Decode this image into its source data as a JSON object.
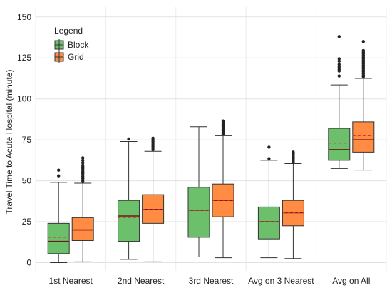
{
  "chart_data": {
    "type": "box",
    "ylabel": "Travel Time to Acute Hospital (minute)",
    "xlabel": "",
    "ylim": [
      -5,
      156
    ],
    "yticks": [
      0,
      25,
      50,
      75,
      100,
      125,
      150
    ],
    "grid": true,
    "legend": {
      "title": "Legend",
      "position": "top-left"
    },
    "categories": [
      "1st Nearest",
      "2nd Nearest",
      "3rd Nearest",
      "Avg on 3 Nearest",
      "Avg on All"
    ],
    "series": [
      {
        "name": "Block",
        "color": "#6cc06c",
        "boxes": [
          {
            "whislo": 0,
            "q1": 5.5,
            "med": 13,
            "q3": 24,
            "whishi": 49,
            "mean": 15.5,
            "fliers": [
              53,
              56.5
            ]
          },
          {
            "whislo": 2,
            "q1": 13,
            "med": 28.5,
            "q3": 38,
            "whishi": 74,
            "mean": 27.5,
            "fliers": [
              75.5
            ]
          },
          {
            "whislo": 3.5,
            "q1": 15.5,
            "med": 32,
            "q3": 46,
            "whishi": 83,
            "mean": 32,
            "fliers": []
          },
          {
            "whislo": 3,
            "q1": 14.5,
            "med": 25,
            "q3": 34,
            "whishi": 62.5,
            "mean": 25,
            "fliers": [
              63.5,
              70.5
            ]
          },
          {
            "whislo": 57.5,
            "q1": 62.5,
            "med": 69,
            "q3": 82,
            "whishi": 108.5,
            "mean": 73,
            "fliers": [
              114,
              117,
              118,
              119.5,
              121,
              123,
              124.5,
              138
            ]
          }
        ]
      },
      {
        "name": "Grid",
        "color": "#ff8c42",
        "boxes": [
          {
            "whislo": 0.5,
            "q1": 13.5,
            "med": 20,
            "q3": 27.5,
            "whishi": 48.5,
            "mean": 20,
            "fliers": [
              49.5,
              50.5,
              51.5,
              52.5,
              53.5,
              54.5,
              55.5,
              56.5,
              57.5,
              58.5,
              59.5,
              61,
              62.5,
              64
            ]
          },
          {
            "whislo": 0.5,
            "q1": 24,
            "med": 32.5,
            "q3": 41.5,
            "whishi": 68,
            "mean": 32.5,
            "fliers": [
              69,
              70,
              71,
              72,
              73,
              74,
              75,
              76
            ]
          },
          {
            "whislo": 3,
            "q1": 28,
            "med": 38,
            "q3": 48,
            "whishi": 77.5,
            "mean": 38,
            "fliers": [
              78.5,
              79.5,
              80.5,
              81.5,
              82.5,
              83.5,
              84.5,
              85.5,
              86.5
            ]
          },
          {
            "whislo": 2.5,
            "q1": 22.5,
            "med": 30.5,
            "q3": 38,
            "whishi": 60.5,
            "mean": 30.5,
            "fliers": [
              61.5,
              62.5,
              63.5,
              64.5,
              65.5,
              66.5,
              67.5
            ]
          },
          {
            "whislo": 56.5,
            "q1": 67.5,
            "med": 75,
            "q3": 86,
            "whishi": 112.5,
            "mean": 77.5,
            "fliers": [
              113.5,
              114.5,
              115.5,
              116.5,
              117.5,
              118.5,
              119.5,
              120.5,
              121.5,
              122.5,
              123.5,
              124.5,
              125.5,
              126.5,
              127.5,
              128.5,
              129.5,
              135
            ]
          }
        ]
      }
    ],
    "meanline": {
      "style": "dashed",
      "color": "#e03030"
    }
  }
}
